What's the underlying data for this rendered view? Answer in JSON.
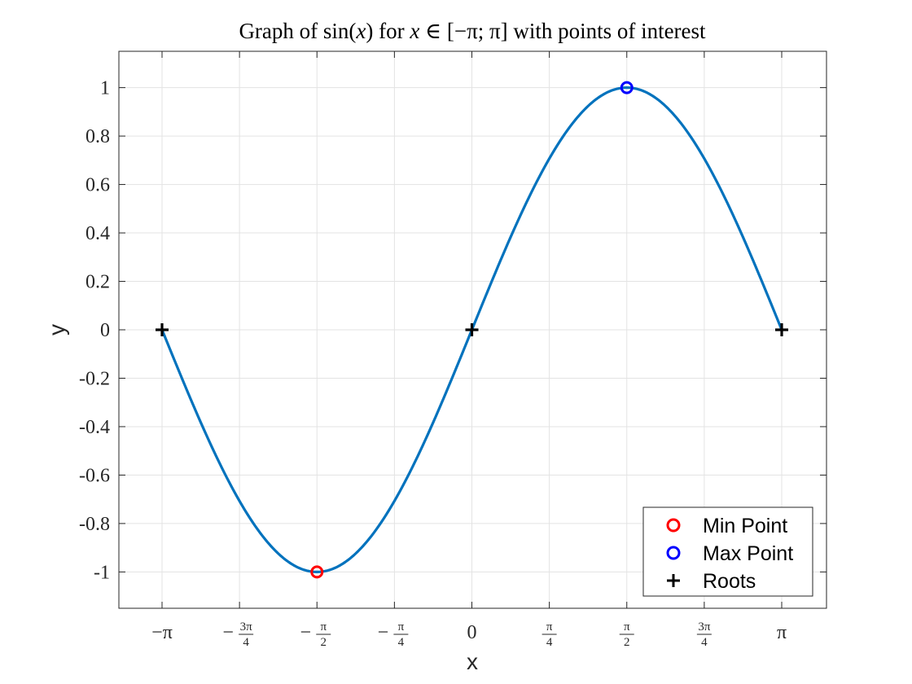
{
  "chart_data": {
    "type": "line",
    "title": {
      "prefix": "Graph of sin(",
      "var": "x",
      "mid1": ") for ",
      "var2": "x",
      "mid2": " ∈ [−π; π] with points of interest"
    },
    "xlabel": "x",
    "ylabel": "y",
    "xlim": [
      -3.14159,
      3.14159
    ],
    "ylim": [
      -1.15,
      1.15
    ],
    "grid": true,
    "legend_position": "bottom-right",
    "x_ticks": [
      {
        "value": -3.14159,
        "label": "−π"
      },
      {
        "value": -2.35619,
        "label": "3π/4",
        "sign": "−",
        "num": "3π",
        "den": "4"
      },
      {
        "value": -1.5708,
        "label": "π/2",
        "sign": "−",
        "num": "π",
        "den": "2"
      },
      {
        "value": -0.7854,
        "label": "π/4",
        "sign": "−",
        "num": "π",
        "den": "4"
      },
      {
        "value": 0,
        "label": "0"
      },
      {
        "value": 0.7854,
        "label": "π/4",
        "num": "π",
        "den": "4"
      },
      {
        "value": 1.5708,
        "label": "π/2",
        "num": "π",
        "den": "2"
      },
      {
        "value": 2.35619,
        "label": "3π/4",
        "num": "3π",
        "den": "4"
      },
      {
        "value": 3.14159,
        "label": "π"
      }
    ],
    "y_ticks": [
      {
        "value": 1,
        "label": "1"
      },
      {
        "value": 0.8,
        "label": "0.8"
      },
      {
        "value": 0.6,
        "label": "0.6"
      },
      {
        "value": 0.4,
        "label": "0.4"
      },
      {
        "value": 0.2,
        "label": "0.2"
      },
      {
        "value": 0,
        "label": "0"
      },
      {
        "value": -0.2,
        "label": "-0.2"
      },
      {
        "value": -0.4,
        "label": "-0.4"
      },
      {
        "value": -0.6,
        "label": "-0.6"
      },
      {
        "value": -0.8,
        "label": "-0.8"
      },
      {
        "value": -1,
        "label": "-1"
      }
    ],
    "series": [
      {
        "type": "line",
        "color": "#0072BD",
        "function": "sin",
        "x": [
          -3.14159,
          -2.82743,
          -2.51327,
          -2.19911,
          -1.88496,
          -1.5708,
          -1.25664,
          -0.94248,
          -0.62832,
          -0.31416,
          0,
          0.31416,
          0.62832,
          0.94248,
          1.25664,
          1.5708,
          1.88496,
          2.19911,
          2.51327,
          2.82743,
          3.14159
        ],
        "y": [
          0,
          -0.309,
          -0.588,
          -0.809,
          -0.951,
          -1,
          -0.951,
          -0.809,
          -0.588,
          -0.309,
          0,
          0.309,
          0.588,
          0.809,
          0.951,
          1,
          0.951,
          0.809,
          0.588,
          0.309,
          0
        ]
      },
      {
        "name": "Min Point",
        "type": "scatter",
        "marker": "circle",
        "color": "#FF0000",
        "points": [
          {
            "x": -1.5708,
            "y": -1
          }
        ]
      },
      {
        "name": "Max Point",
        "type": "scatter",
        "marker": "circle",
        "color": "#0000FF",
        "points": [
          {
            "x": 1.5708,
            "y": 1
          }
        ]
      },
      {
        "name": "Roots",
        "type": "scatter",
        "marker": "plus",
        "color": "#000000",
        "points": [
          {
            "x": -3.14159,
            "y": 0
          },
          {
            "x": 0,
            "y": 0
          },
          {
            "x": 3.14159,
            "y": 0
          }
        ]
      }
    ]
  }
}
